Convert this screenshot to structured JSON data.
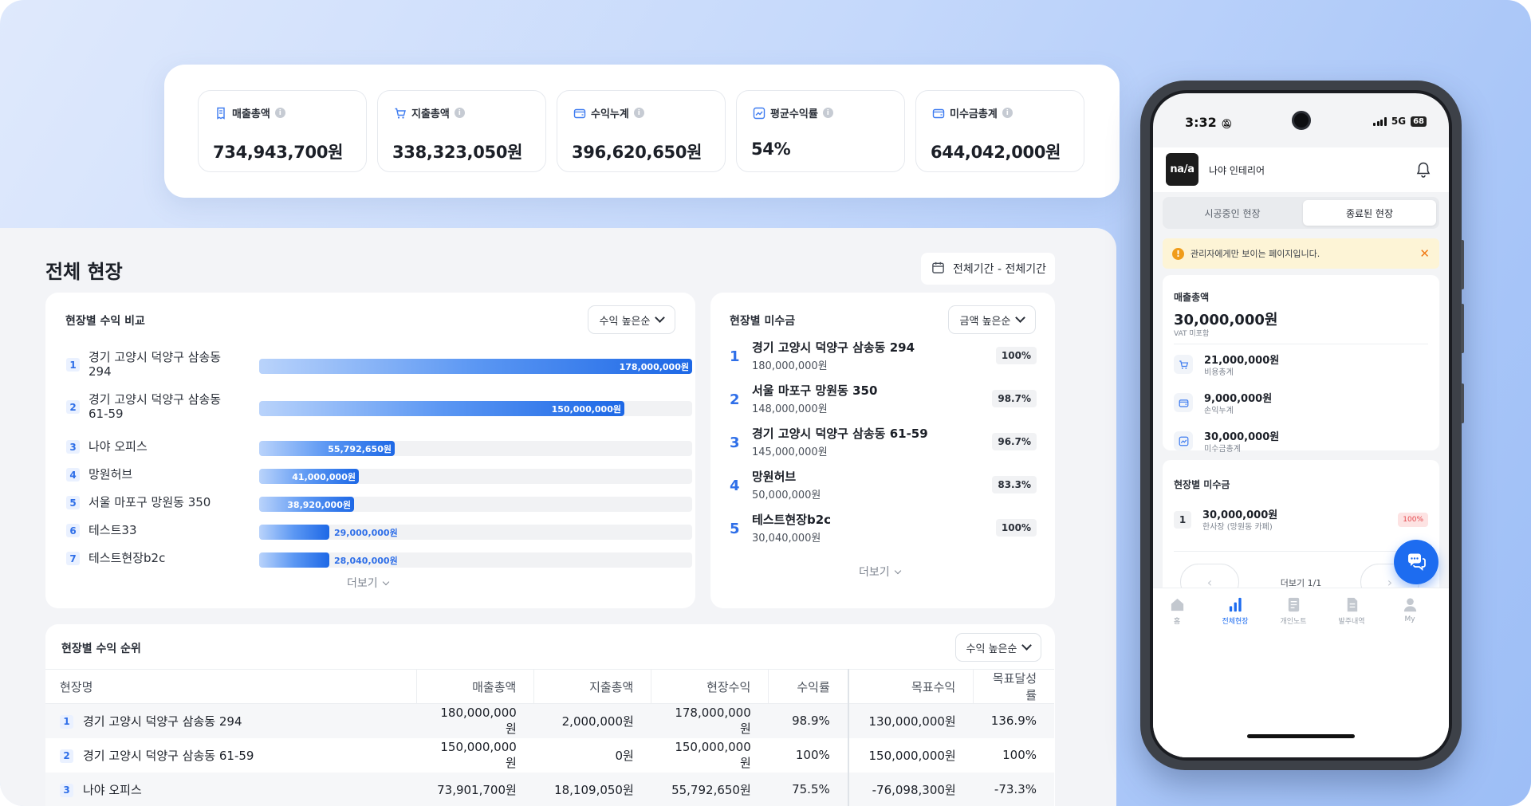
{
  "kpis": [
    {
      "label": "매출총액",
      "value": "734,943,700원",
      "icon": "receipt-icon"
    },
    {
      "label": "지출총액",
      "value": "338,323,050원",
      "icon": "cart-icon"
    },
    {
      "label": "수익누계",
      "value": "396,620,650원",
      "icon": "wallet-icon"
    },
    {
      "label": "평균수익률",
      "value": "54%",
      "icon": "trend-chart-icon"
    },
    {
      "label": "미수금총계",
      "value": "644,042,000원",
      "icon": "wallet-icon"
    }
  ],
  "main": {
    "title": "전체 현장",
    "period": "전체기간 - 전체기간"
  },
  "profit_compare": {
    "title": "현장별 수익 비교",
    "sort": "수익 높은순",
    "more": "더보기",
    "max": 178000000,
    "items": [
      {
        "rank": "1",
        "name": "경기 고양시 덕양구 삼송동 294",
        "value": 178000000,
        "label": "178,000,000원"
      },
      {
        "rank": "2",
        "name": "경기 고양시 덕양구 삼송동 61-59",
        "value": 150000000,
        "label": "150,000,000원"
      },
      {
        "rank": "3",
        "name": "나야 오피스",
        "value": 55792650,
        "label": "55,792,650원"
      },
      {
        "rank": "4",
        "name": "망원허브",
        "value": 41000000,
        "label": "41,000,000원"
      },
      {
        "rank": "5",
        "name": "서울 마포구 망원동 350",
        "value": 38920000,
        "label": "38,920,000원"
      },
      {
        "rank": "6",
        "name": "테스트33",
        "value": 29000000,
        "label": "29,000,000원"
      },
      {
        "rank": "7",
        "name": "테스트현장b2c",
        "value": 28040000,
        "label": "28,040,000원"
      }
    ]
  },
  "receivables": {
    "title": "현장별 미수금",
    "sort": "금액 높은순",
    "more": "더보기",
    "items": [
      {
        "rank": "1",
        "name": "경기 고양시 덕양구 삼송동 294",
        "amount": "180,000,000원",
        "pct": "100%"
      },
      {
        "rank": "2",
        "name": "서울 마포구 망원동 350",
        "amount": "148,000,000원",
        "pct": "98.7%"
      },
      {
        "rank": "3",
        "name": "경기 고양시 덕양구 삼송동 61-59",
        "amount": "145,000,000원",
        "pct": "96.7%"
      },
      {
        "rank": "4",
        "name": "망원허브",
        "amount": "50,000,000원",
        "pct": "83.3%"
      },
      {
        "rank": "5",
        "name": "테스트현장b2c",
        "amount": "30,040,000원",
        "pct": "100%"
      }
    ]
  },
  "ranking": {
    "title": "현장별 수익 순위",
    "sort": "수익 높은순",
    "columns": [
      "현장명",
      "매출총액",
      "지출총액",
      "현장수익",
      "수익률",
      "목표수익",
      "목표달성률"
    ],
    "rows": [
      {
        "rank": "1",
        "cells": [
          "경기 고양시 덕양구 삼송동 294",
          "180,000,000원",
          "2,000,000원",
          "178,000,000원",
          "98.9%",
          "130,000,000원",
          "136.9%"
        ]
      },
      {
        "rank": "2",
        "cells": [
          "경기 고양시 덕양구 삼송동 61-59",
          "150,000,000원",
          "0원",
          "150,000,000원",
          "100%",
          "150,000,000원",
          "100%"
        ]
      },
      {
        "rank": "3",
        "cells": [
          "나야 오피스",
          "73,901,700원",
          "18,109,050원",
          "55,792,650원",
          "75.5%",
          "-76,098,300원",
          "-73.3%"
        ]
      }
    ]
  },
  "phone": {
    "time": "3:32",
    "network": "5G",
    "battery": "68",
    "logo": "na/a",
    "company": "나야 인테리어",
    "tabs": [
      "시공중인 현장",
      "종료된 현장"
    ],
    "alert": "관리자에게만 보이는 페이지입니다.",
    "sales": {
      "label": "매출총액",
      "value": "30,000,000원",
      "note": "VAT 미포함"
    },
    "stats": [
      {
        "value": "21,000,000원",
        "caption": "비용총계",
        "icon": "cart-icon"
      },
      {
        "value": "9,000,000원",
        "caption": "손익누계",
        "icon": "wallet-icon"
      },
      {
        "value": "30,000,000원",
        "caption": "미수금총계",
        "icon": "trend-chart-icon"
      }
    ],
    "recv": {
      "title": "현장별 미수금",
      "item": {
        "rank": "1",
        "amount": "30,000,000원",
        "name": "한사장 (망원동 카페)",
        "pct": "100%"
      },
      "pager": "더보기 1/1"
    },
    "nav": [
      {
        "label": "홈",
        "icon": "home-icon"
      },
      {
        "label": "전체현장",
        "icon": "bar-chart-icon"
      },
      {
        "label": "개인노트",
        "icon": "notebook-icon"
      },
      {
        "label": "발주내역",
        "icon": "document-icon"
      },
      {
        "label": "My",
        "icon": "user-icon"
      }
    ]
  }
}
